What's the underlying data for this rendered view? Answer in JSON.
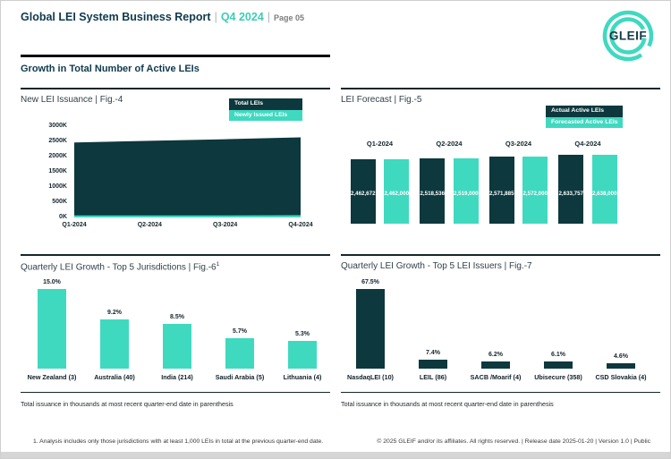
{
  "header": {
    "title": "Global LEI System Business Report",
    "separator": "|",
    "quarter": "Q4 2024",
    "page_label": "Page 05",
    "logo_text": "GLEIF"
  },
  "section": {
    "title": "Growth in Total Number of Active LEIs"
  },
  "colors": {
    "dark_teal": "#0d383d",
    "teal": "#3fd9c0",
    "heading": "#0e3a4c"
  },
  "chart_data": [
    {
      "id": "fig4",
      "type": "area",
      "title": "New LEI Issuance | Fig.-4",
      "x": [
        "Q1-2024",
        "Q2-2024",
        "Q3-2024",
        "Q4-2024"
      ],
      "series": [
        {
          "name": "Total LEIs",
          "color": "#0d383d",
          "values": [
            2462672,
            2518536,
            2571885,
            2633757
          ]
        },
        {
          "name": "Newly Issued LEIs",
          "color": "#3fd9c0",
          "values": [
            54000,
            56000,
            62000,
            75000
          ]
        }
      ],
      "ylim": [
        0,
        3000000
      ],
      "yticks": [
        "3000K",
        "2500K",
        "2000K",
        "1500K",
        "1000K",
        "500K",
        "0K"
      ],
      "legend_position": "top-right",
      "grid": false
    },
    {
      "id": "fig5",
      "type": "bar",
      "title": "LEI Forecast | Fig.-5",
      "categories": [
        "Q1-2024",
        "Q2-2024",
        "Q3-2024",
        "Q4-2024"
      ],
      "series": [
        {
          "name": "Actual Active LEIs",
          "color": "#0d383d",
          "values": [
            2462672,
            2518536,
            2571885,
            2633757
          ],
          "labels": [
            "2,462,672",
            "2,518,536",
            "2,571,885",
            "2,633,757"
          ]
        },
        {
          "name": "Forecasted Active LEIs",
          "color": "#3fd9c0",
          "values": [
            2462000,
            2519000,
            2572000,
            2638000
          ],
          "labels": [
            "2,462,000",
            "2,519,000",
            "2,572,000",
            "2,638,000"
          ]
        }
      ],
      "legend_position": "top-right",
      "grid": false
    },
    {
      "id": "fig6",
      "type": "bar",
      "title": "Quarterly LEI Growth - Top 5 Jurisdictions | Fig.-6",
      "title_superscript": "1",
      "categories": [
        "New Zealand (3)",
        "Australia (40)",
        "India (214)",
        "Saudi Arabia (5)",
        "Lithuania (4)"
      ],
      "values": [
        15.0,
        9.2,
        8.5,
        5.7,
        5.3
      ],
      "labels": [
        "15.0%",
        "9.2%",
        "8.5%",
        "5.7%",
        "5.3%"
      ],
      "bar_color": "#3fd9c0",
      "grid": false
    },
    {
      "id": "fig7",
      "type": "bar",
      "title": "Quarterly LEI Growth - Top 5 LEI Issuers | Fig.-7",
      "categories": [
        "NasdaqLEI (10)",
        "LEIL (86)",
        "SACB /Moarif (4)",
        "Ubisecure (358)",
        "CSD Slovakia (4)"
      ],
      "values": [
        67.5,
        7.4,
        6.2,
        6.1,
        4.6
      ],
      "labels": [
        "67.5%",
        "7.4%",
        "6.2%",
        "6.1%",
        "4.6%"
      ],
      "bar_color": "#0d383d",
      "grid": false
    }
  ],
  "footnotes": {
    "jurisdictions_note": "Total issuance in thousands at most recent quarter-end date in parenthesis",
    "issuers_note": "Total issuance in thousands at most recent quarter-end date in parenthesis",
    "analysis_note": "1. Analysis includes only those jurisdictions with at least 1,000 LEIs in total at the previous quarter-end date.",
    "copyright": "© 2025 GLEIF and/or its affiliates. All rights reserved. | Release date 2025-01-20 | Version 1.0 | Public"
  }
}
